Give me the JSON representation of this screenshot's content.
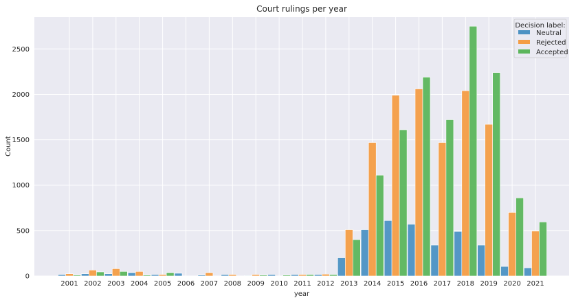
{
  "chart_data": {
    "type": "bar",
    "title": "Court rulings per year",
    "xlabel": "year",
    "ylabel": "Count",
    "ylim": [
      0,
      2850
    ],
    "yticks": [
      0,
      500,
      1000,
      1500,
      2000,
      2500
    ],
    "grid": true,
    "legend": {
      "title": "Decision label:",
      "placement": "top-right"
    },
    "categories": [
      "2001",
      "2002",
      "2003",
      "2004",
      "2005",
      "2006",
      "2007",
      "2008",
      "2009",
      "2010",
      "2011",
      "2012",
      "2013",
      "2014",
      "2015",
      "2016",
      "2017",
      "2018",
      "2019",
      "2020",
      "2021"
    ],
    "series": [
      {
        "name": "Neutral",
        "color": "#4c92c3",
        "values": [
          15,
          25,
          25,
          35,
          15,
          30,
          10,
          15,
          5,
          15,
          15,
          15,
          200,
          510,
          610,
          570,
          340,
          490,
          340,
          105,
          90
        ]
      },
      {
        "name": "Rejected",
        "color": "#f49d45",
        "values": [
          25,
          65,
          80,
          50,
          15,
          0,
          35,
          15,
          15,
          0,
          15,
          20,
          510,
          1470,
          1990,
          2060,
          1470,
          2040,
          1670,
          700,
          495
        ]
      },
      {
        "name": "Accepted",
        "color": "#5cb65c",
        "values": [
          10,
          45,
          50,
          10,
          35,
          0,
          0,
          0,
          10,
          10,
          15,
          15,
          400,
          1110,
          1610,
          2190,
          1720,
          2750,
          2240,
          860,
          595
        ]
      }
    ]
  }
}
